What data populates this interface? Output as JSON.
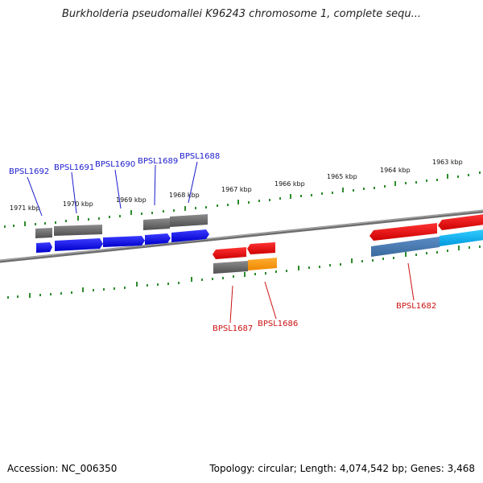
{
  "title": "Burkholderia pseudomallei K96243 chromosome 1, complete sequ...",
  "footer": {
    "accession": "Accession: NC_006350",
    "summary": "Topology: circular; Length: 4,074,542 bp; Genes: 3,468"
  },
  "scale": {
    "tick_labels": [
      "1971 kbp",
      "1970 kbp",
      "1969 kbp",
      "1968 kbp",
      "1967 kbp",
      "1966 kbp",
      "1965 kbp",
      "1964 kbp",
      "1963 kbp"
    ]
  },
  "genes": {
    "labels_top": [
      "BPSL1692",
      "BPSL1691",
      "BPSL1690",
      "BPSL1689",
      "BPSL1688"
    ],
    "labels_bottom": [
      "BPSL1687",
      "BPSL1686",
      "BPSL1682"
    ]
  },
  "colors": {
    "backbone": "#7a7a7a",
    "ruler": "#2e8b2e",
    "gene_blue": "#1010e0",
    "gene_red": "#ee1111",
    "gene_orange": "#ff9900",
    "gene_steel": "#4a7ab0",
    "gene_cyan": "#19b8f0",
    "gene_gray": "#6a6a6a"
  }
}
